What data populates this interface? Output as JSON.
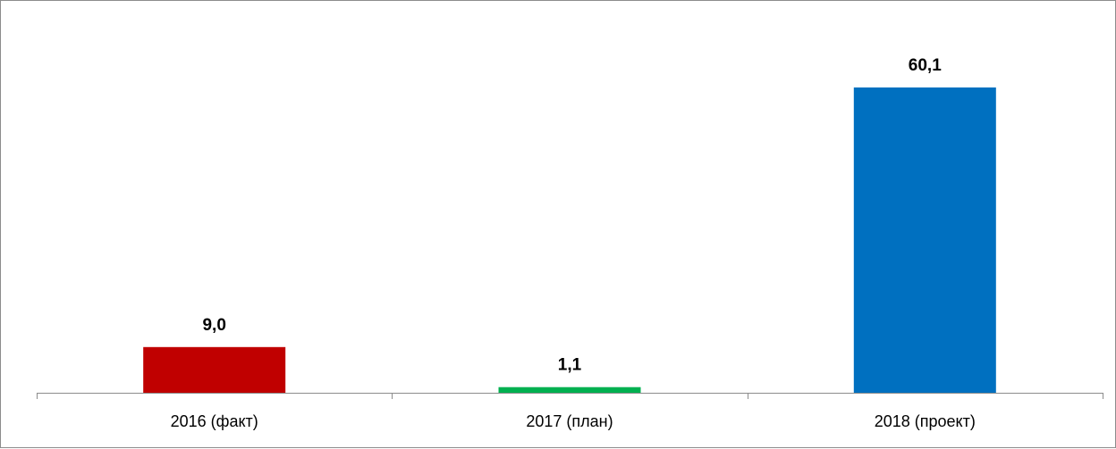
{
  "chart_data": {
    "type": "bar",
    "categories": [
      "2016 (факт)",
      "2017 (план)",
      "2018 (проект)"
    ],
    "values": [
      9.0,
      1.1,
      60.1
    ],
    "data_labels": [
      "9,0",
      "1,1",
      "60,1"
    ],
    "bar_colors": [
      "#c00000",
      "#00b050",
      "#0070c0"
    ],
    "ylim": [
      0,
      70
    ],
    "y_axis_visible": false,
    "grid": false,
    "legend": "none"
  }
}
